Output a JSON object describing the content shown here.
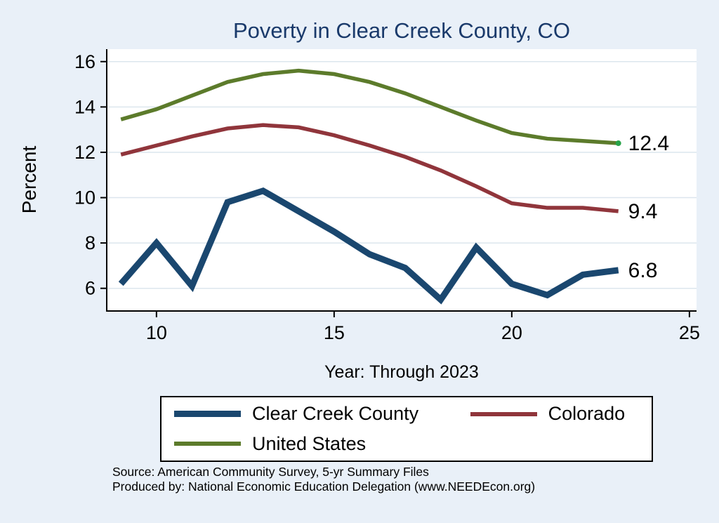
{
  "colors": {
    "background": "#e9f0f8",
    "plot_background": "#ffffff",
    "grid": "#dce6ee",
    "axis": "#000000",
    "title": "#1a3a6b",
    "text": "#000000"
  },
  "footer": {
    "source_line": "Source: American Community Survey, 5-yr Summary Files",
    "produced_line": "Produced by: National Economic Education Delegation (www.NEEDEcon.org)"
  },
  "chart_data": {
    "type": "line",
    "title": "Poverty in Clear Creek County, CO",
    "xlabel": "Year: Through 2023",
    "ylabel": "Percent",
    "x": [
      9,
      10,
      11,
      12,
      13,
      14,
      15,
      16,
      17,
      18,
      19,
      20,
      21,
      22,
      23
    ],
    "xlim": [
      8.6,
      25.2
    ],
    "ylim": [
      5.0,
      16.55
    ],
    "xticks": [
      10,
      15,
      20,
      25
    ],
    "yticks": [
      6,
      8,
      10,
      12,
      14,
      16
    ],
    "grid": true,
    "legend_position": "bottom",
    "series": [
      {
        "name": "Clear Creek County",
        "color": "#1a476f",
        "line_width": 9,
        "end_label": "6.8",
        "values": [
          6.2,
          8.0,
          6.1,
          9.8,
          10.3,
          9.4,
          8.5,
          7.5,
          6.9,
          5.5,
          7.8,
          6.2,
          5.7,
          6.6,
          6.8
        ]
      },
      {
        "name": "Colorado",
        "color": "#90353b",
        "line_width": 5.5,
        "end_label": "9.4",
        "values": [
          11.9,
          12.3,
          12.7,
          13.05,
          13.2,
          13.1,
          12.75,
          12.3,
          11.8,
          11.2,
          10.5,
          9.75,
          9.55,
          9.55,
          9.4
        ]
      },
      {
        "name": "United States",
        "color": "#5c7b2b",
        "line_width": 5.5,
        "end_label": "12.4",
        "end_marker": true,
        "end_marker_color": "#27a348",
        "values": [
          13.45,
          13.9,
          14.5,
          15.1,
          15.45,
          15.6,
          15.45,
          15.1,
          14.6,
          14.0,
          13.4,
          12.85,
          12.6,
          12.5,
          12.4
        ]
      }
    ]
  }
}
